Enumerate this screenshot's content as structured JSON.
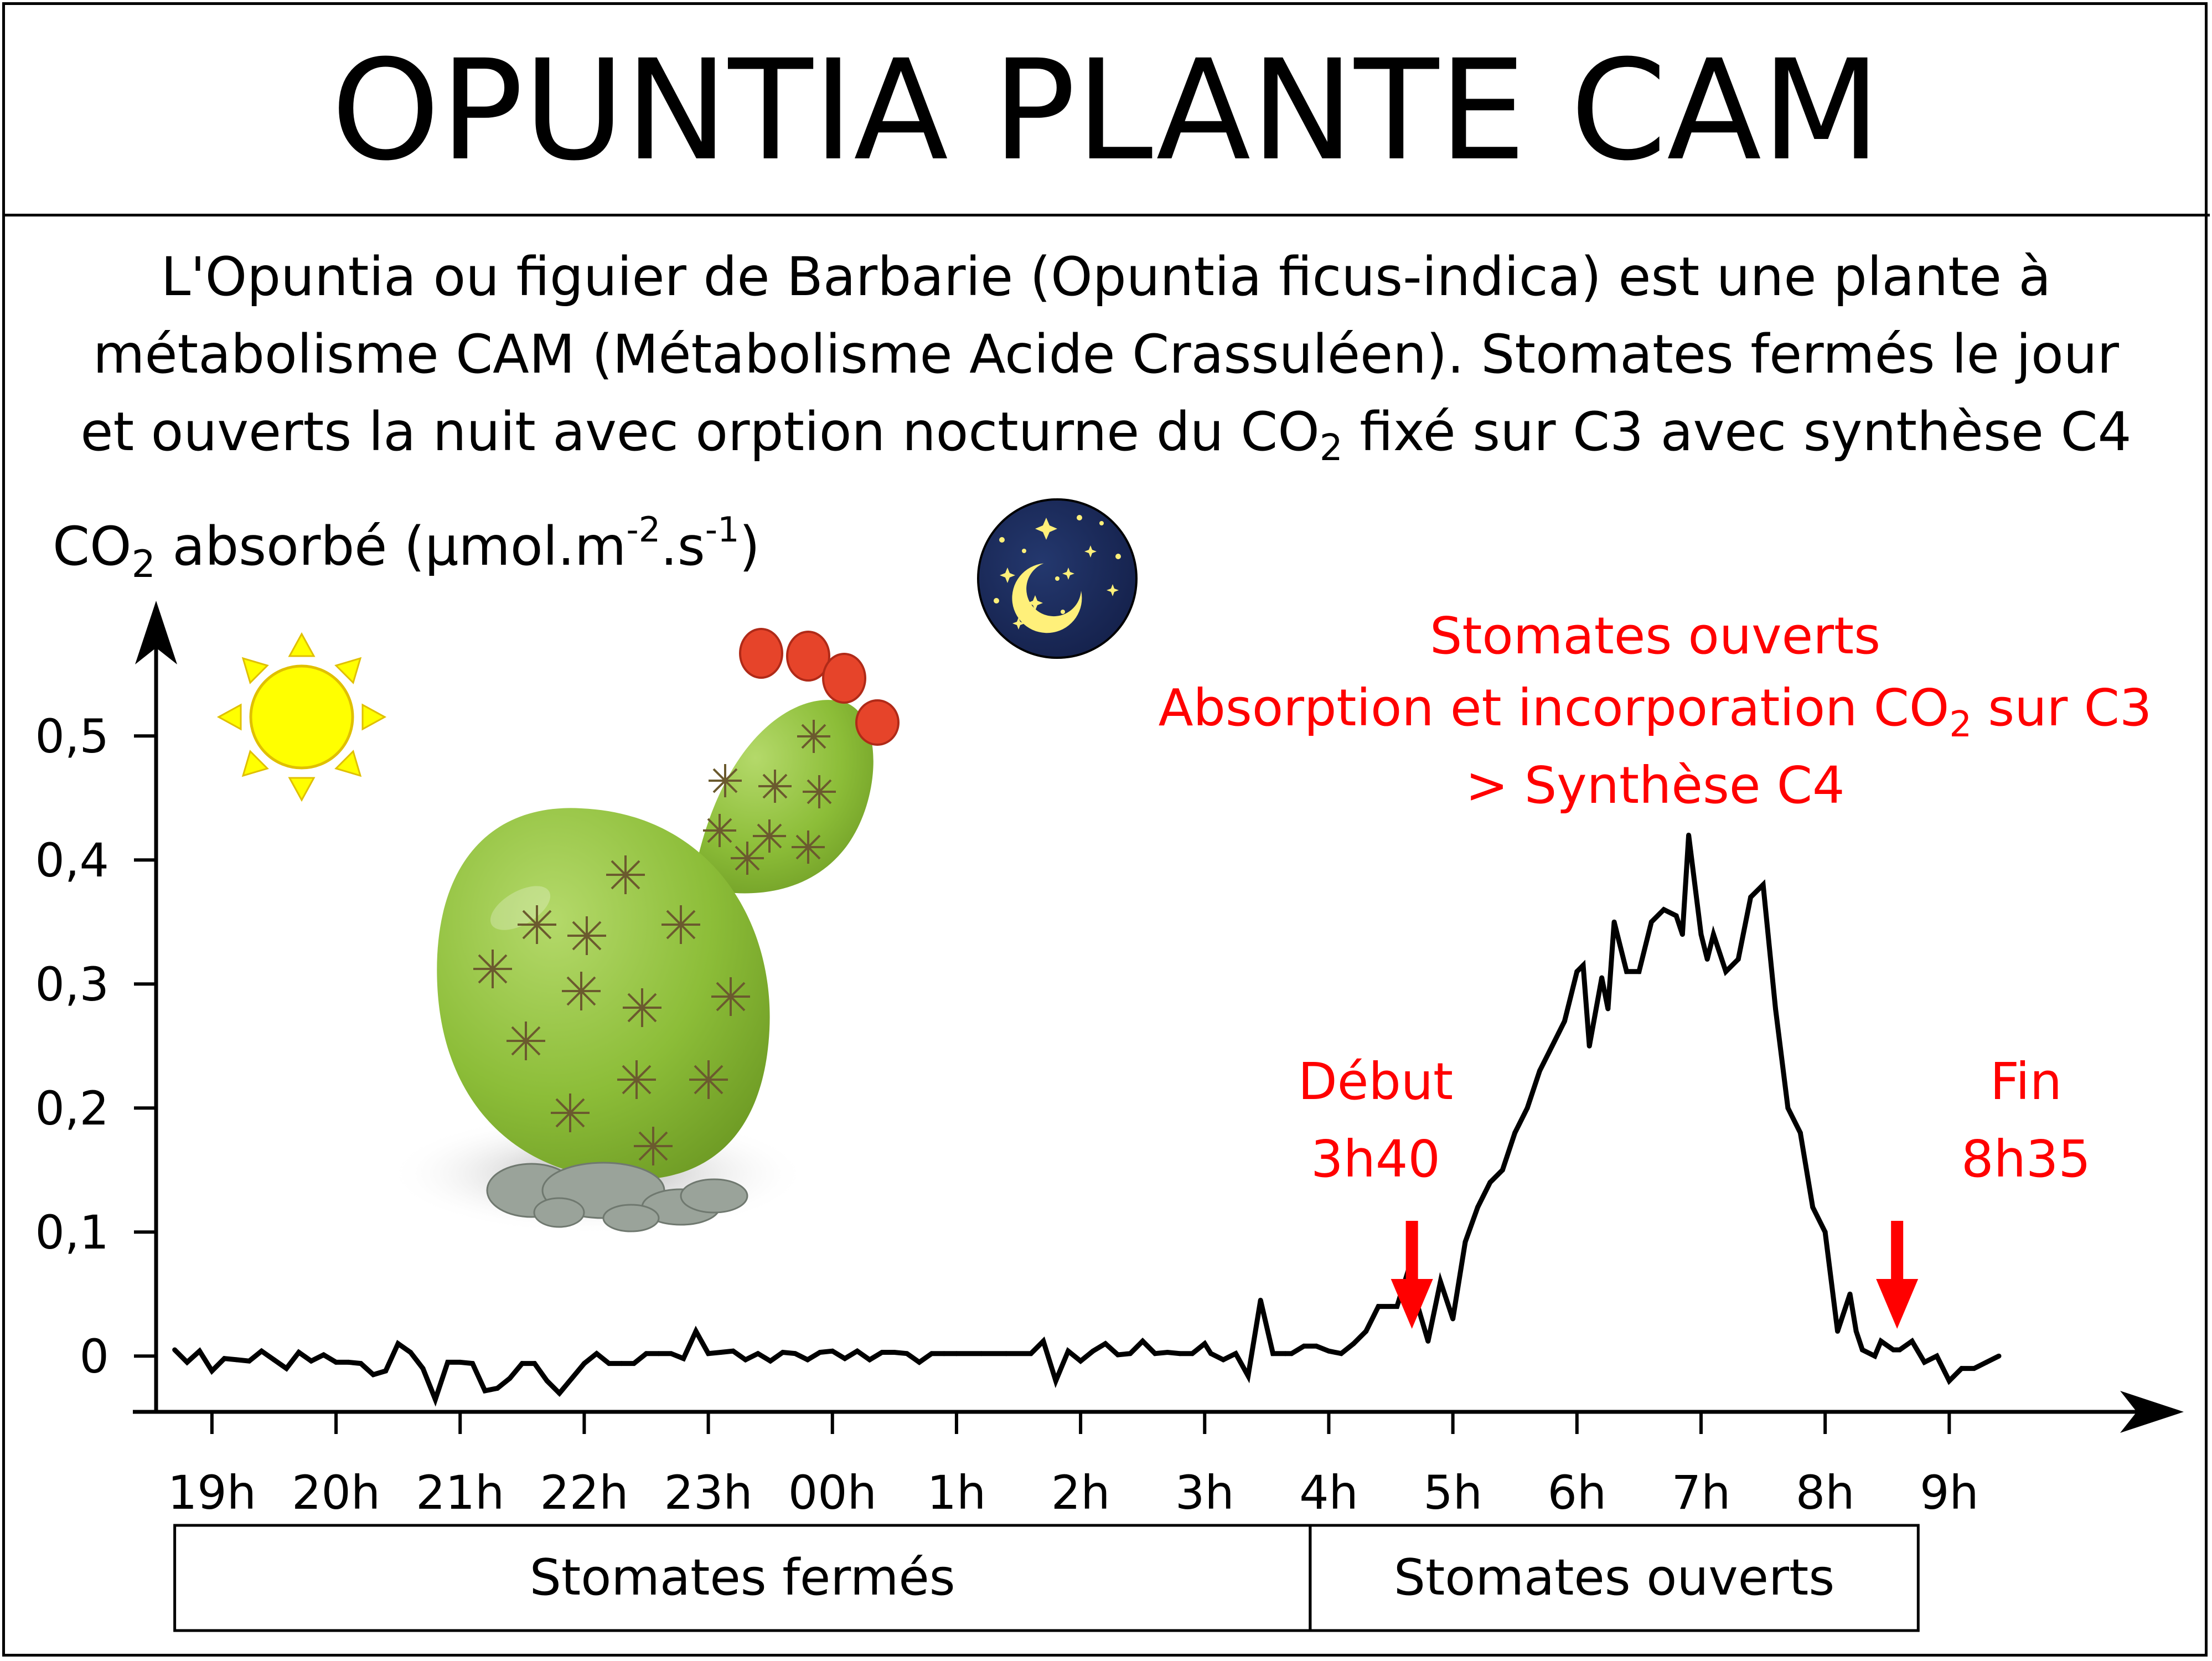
{
  "title": "OPUNTIA PLANTE CAM",
  "description": {
    "line1": "L'Opuntia ou figuier de Barbarie (Opuntia ficus-indica) est une plante à",
    "line2": "métabolisme CAM (Métabolisme Acide Crassuléen). Stomates fermés le jour",
    "line3_a": "et ouverts la nuit avec orption nocturne du CO",
    "line3_sub": "2",
    "line3_b": " fixé sur C3 avec synthèse C4"
  },
  "chart_data": {
    "type": "line",
    "title": "OPUNTIA PLANTE CAM",
    "ylabel": {
      "a": "CO",
      "sub": "2",
      "b": " absorbé (µmol.m",
      "sup1": "-2",
      "c": ".s",
      "sup2": "-1",
      "d": ")"
    },
    "y_ticks": [
      "0",
      "0,1",
      "0,2",
      "0,3",
      "0,4",
      "0,5"
    ],
    "y_tick_values": [
      0,
      0.1,
      0.2,
      0.3,
      0.4,
      0.5
    ],
    "ylim": [
      -0.045,
      0.58
    ],
    "x_ticks": [
      "19h",
      "20h",
      "21h",
      "22h",
      "23h",
      "00h",
      "1h",
      "2h",
      "3h",
      "4h",
      "5h",
      "6h",
      "7h",
      "8h",
      "9h"
    ],
    "x_tick_values": [
      19,
      20,
      21,
      22,
      23,
      24,
      25,
      26,
      27,
      28,
      29,
      30,
      31,
      32,
      33
    ],
    "xlim": [
      18.55,
      34.6
    ],
    "grid": false,
    "series": [
      {
        "color": "#000000",
        "x": [
          18.7,
          18.8,
          18.9,
          19.0,
          19.1,
          19.2,
          19.3,
          19.4,
          19.5,
          19.6,
          19.7,
          19.8,
          19.9,
          20.0,
          20.1,
          20.2,
          20.3,
          20.4,
          20.5,
          20.6,
          20.7,
          20.8,
          20.9,
          21.0,
          21.1,
          21.2,
          21.3,
          21.4,
          21.5,
          21.6,
          21.7,
          21.8,
          21.9,
          22.0,
          22.1,
          22.2,
          22.3,
          22.4,
          22.5,
          22.6,
          22.7,
          22.8,
          22.9,
          23.0,
          23.1,
          23.2,
          23.3,
          23.4,
          23.5,
          23.6,
          23.7,
          23.8,
          23.9,
          24.0,
          24.1,
          24.2,
          24.3,
          24.4,
          24.5,
          24.6,
          24.7,
          24.8,
          24.9,
          25.0,
          25.2,
          25.4,
          25.6,
          25.7,
          25.8,
          25.9,
          26.0,
          26.1,
          26.2,
          26.3,
          26.4,
          26.5,
          26.6,
          26.7,
          26.8,
          26.9,
          27.0,
          27.05,
          27.15,
          27.25,
          27.35,
          27.45,
          27.55,
          27.65,
          27.7,
          27.8,
          27.9,
          28.0,
          28.1,
          28.2,
          28.3,
          28.4,
          28.5,
          28.55,
          28.65,
          28.7,
          28.8,
          28.9,
          29.0,
          29.1,
          29.2,
          29.3,
          29.4,
          29.5,
          29.6,
          29.7,
          29.8,
          29.85,
          29.9,
          30.0,
          30.05,
          30.1,
          30.2,
          30.25,
          30.3,
          30.4,
          30.5,
          30.6,
          30.7,
          30.8,
          30.85,
          30.9,
          31.0,
          31.05,
          31.1,
          31.2,
          31.3,
          31.4,
          31.5,
          31.6,
          31.7,
          31.8,
          31.9,
          32.0,
          32.1,
          32.2,
          32.25,
          32.3,
          32.4,
          32.45,
          32.55,
          32.6,
          32.7,
          32.8,
          32.9,
          33.0,
          33.1,
          33.2,
          33.3,
          33.4
        ],
        "values": [
          0.005,
          -0.005,
          0.004,
          -0.012,
          -0.002,
          -0.003,
          -0.004,
          0.004,
          -0.003,
          -0.01,
          0.003,
          -0.004,
          0.001,
          -0.005,
          -0.005,
          -0.006,
          -0.015,
          -0.012,
          0.01,
          0.003,
          -0.01,
          -0.035,
          -0.005,
          -0.005,
          -0.006,
          -0.028,
          -0.026,
          -0.018,
          -0.006,
          -0.006,
          -0.02,
          -0.03,
          -0.018,
          -0.006,
          0.002,
          -0.006,
          -0.006,
          -0.006,
          0.002,
          0.002,
          0.002,
          -0.002,
          0.02,
          0.002,
          0.003,
          0.004,
          -0.003,
          0.002,
          -0.004,
          0.003,
          0.002,
          -0.003,
          0.003,
          0.004,
          -0.002,
          0.004,
          -0.003,
          0.003,
          0.003,
          0.002,
          -0.005,
          0.002,
          0.002,
          0.002,
          0.002,
          0.002,
          0.002,
          0.012,
          -0.02,
          0.004,
          -0.004,
          0.004,
          0.01,
          0.001,
          0.002,
          0.012,
          0.002,
          0.003,
          0.002,
          0.002,
          0.01,
          0.002,
          -0.003,
          0.002,
          -0.016,
          0.045,
          0.002,
          0.002,
          0.002,
          0.008,
          0.008,
          0.004,
          0.002,
          0.01,
          0.02,
          0.04,
          0.04,
          0.04,
          0.072,
          0.046,
          0.012,
          0.06,
          0.03,
          0.092,
          0.12,
          0.14,
          0.15,
          0.18,
          0.2,
          0.23,
          0.25,
          0.26,
          0.27,
          0.31,
          0.315,
          0.25,
          0.305,
          0.28,
          0.35,
          0.31,
          0.31,
          0.35,
          0.36,
          0.355,
          0.34,
          0.42,
          0.34,
          0.32,
          0.34,
          0.31,
          0.32,
          0.37,
          0.38,
          0.28,
          0.2,
          0.18,
          0.12,
          0.1,
          0.02,
          0.05,
          0.02,
          0.005,
          0.0,
          0.012,
          0.005,
          0.005,
          0.012,
          -0.005,
          0.0,
          -0.02,
          -0.01,
          -0.01,
          -0.005,
          0.0
        ]
      }
    ],
    "annotations": {
      "debut_line1": "Début",
      "debut_line2": "3h40",
      "debut_x": 28.67,
      "fin_line1": "Fin",
      "fin_line2": "8h35",
      "fin_x": 32.58,
      "open_line1": "Stomates ouverts",
      "open_line2_a": "Absorption et incorporation CO",
      "open_line2_sub": "2",
      "open_line2_b": " sur C3",
      "open_line3": "> Synthèse C4"
    },
    "bands": [
      {
        "label": "Stomates fermés",
        "x_start": 18.7,
        "x_end": 27.85
      },
      {
        "label": "Stomates ouverts",
        "x_start": 27.85,
        "x_end": 32.75
      }
    ]
  },
  "colors": {
    "annotation": "#ff0000",
    "cactus_pad": "#8cbd38",
    "sun": "#ffff00",
    "night_sky": "#1a2a5e",
    "moon": "#fff07a"
  },
  "icons": {
    "sun": "sun-icon",
    "moon": "moon-night-icon",
    "cactus": "opuntia-cactus-illustration"
  }
}
